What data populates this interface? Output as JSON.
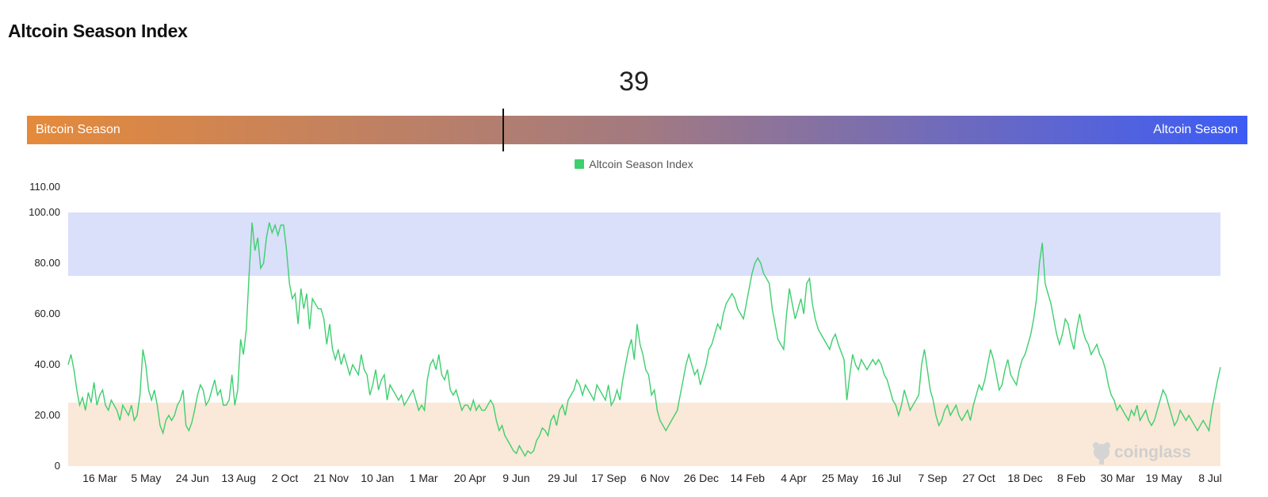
{
  "header": {
    "title": "Altcoin Season Index"
  },
  "gauge": {
    "value": "39",
    "left_label": "Bitcoin Season",
    "right_label": "Altcoin Season",
    "marker_fraction": 0.39,
    "gradient_colors": [
      "#e58a3b",
      "#a37a80",
      "#3d5cf5"
    ]
  },
  "watermark": {
    "text": "coinglass",
    "icon": "coinglass-logo-icon"
  },
  "chart_data": {
    "type": "line",
    "title": "",
    "xlabel": "",
    "ylabel": "",
    "ylim": [
      0,
      110
    ],
    "yticks": [
      "0",
      "20.00",
      "40.00",
      "60.00",
      "80.00",
      "100.00",
      "110.00"
    ],
    "ytick_values": [
      0,
      20,
      40,
      60,
      80,
      100,
      110
    ],
    "xticks": [
      "16 Mar",
      "5 May",
      "24 Jun",
      "13 Aug",
      "2 Oct",
      "21 Nov",
      "10 Jan",
      "1 Mar",
      "20 Apr",
      "9 Jun",
      "29 Jul",
      "17 Sep",
      "6 Nov",
      "26 Dec",
      "14 Feb",
      "4 Apr",
      "25 May",
      "16 Jul",
      "7 Sep",
      "27 Oct",
      "18 Dec",
      "8 Feb",
      "30 Mar",
      "19 May",
      "8 Jul"
    ],
    "legend": {
      "position": "top-center",
      "entries": [
        "Altcoin Season Index"
      ]
    },
    "grid": false,
    "bands": [
      {
        "from": 75,
        "to": 100,
        "color": "#dadffa",
        "meaning": "altcoin season zone"
      },
      {
        "from": 0,
        "to": 25,
        "color": "#fae8d8",
        "meaning": "bitcoin season zone"
      }
    ],
    "series": [
      {
        "name": "Altcoin Season Index",
        "color": "#3ecf6e",
        "values": [
          40,
          44,
          38,
          30,
          24,
          27,
          22,
          29,
          25,
          33,
          24,
          28,
          30,
          24,
          22,
          26,
          24,
          22,
          18,
          24,
          22,
          20,
          24,
          18,
          20,
          28,
          46,
          40,
          30,
          26,
          30,
          24,
          16,
          13,
          18,
          20,
          18,
          20,
          24,
          26,
          30,
          16,
          14,
          17,
          22,
          28,
          32,
          30,
          24,
          26,
          30,
          34,
          28,
          30,
          24,
          24,
          26,
          36,
          24,
          30,
          50,
          44,
          54,
          76,
          96,
          85,
          90,
          78,
          80,
          90,
          96,
          92,
          95,
          91,
          95,
          95,
          85,
          72,
          66,
          68,
          56,
          70,
          62,
          68,
          54,
          66,
          64,
          62,
          62,
          58,
          48,
          56,
          46,
          42,
          46,
          40,
          44,
          40,
          36,
          40,
          38,
          36,
          44,
          38,
          36,
          28,
          32,
          38,
          30,
          34,
          36,
          26,
          32,
          30,
          28,
          26,
          28,
          24,
          26,
          28,
          30,
          26,
          22,
          24,
          22,
          34,
          40,
          42,
          38,
          44,
          36,
          34,
          38,
          30,
          28,
          30,
          26,
          22,
          24,
          24,
          22,
          26,
          22,
          24,
          22,
          22,
          24,
          26,
          24,
          18,
          14,
          16,
          12,
          10,
          8,
          6,
          5,
          8,
          6,
          4,
          6,
          5,
          6,
          10,
          12,
          15,
          14,
          12,
          18,
          20,
          16,
          22,
          24,
          20,
          26,
          28,
          30,
          34,
          32,
          28,
          32,
          30,
          28,
          26,
          32,
          30,
          28,
          26,
          32,
          24,
          26,
          30,
          26,
          34,
          40,
          46,
          50,
          42,
          56,
          48,
          44,
          38,
          36,
          28,
          30,
          22,
          18,
          16,
          14,
          16,
          18,
          20,
          22,
          28,
          34,
          40,
          44,
          40,
          36,
          38,
          32,
          36,
          40,
          46,
          48,
          52,
          56,
          54,
          60,
          64,
          66,
          68,
          66,
          62,
          60,
          58,
          64,
          70,
          76,
          80,
          82,
          80,
          76,
          74,
          72,
          62,
          56,
          50,
          48,
          46,
          60,
          70,
          64,
          58,
          62,
          66,
          60,
          72,
          74,
          64,
          58,
          54,
          52,
          50,
          48,
          46,
          50,
          52,
          48,
          45,
          42,
          26,
          36,
          44,
          40,
          38,
          42,
          40,
          38,
          40,
          42,
          40,
          42,
          40,
          36,
          34,
          30,
          26,
          24,
          20,
          24,
          30,
          26,
          22,
          24,
          26,
          28,
          40,
          46,
          38,
          30,
          26,
          20,
          16,
          18,
          22,
          24,
          20,
          22,
          24,
          20,
          18,
          20,
          22,
          18,
          24,
          28,
          32,
          30,
          34,
          40,
          46,
          42,
          36,
          30,
          32,
          38,
          42,
          36,
          34,
          32,
          38,
          42,
          44,
          48,
          52,
          58,
          66,
          80,
          88,
          72,
          68,
          64,
          58,
          52,
          48,
          52,
          58,
          56,
          50,
          46,
          54,
          60,
          54,
          50,
          48,
          44,
          46,
          48,
          44,
          42,
          38,
          32,
          28,
          26,
          22,
          24,
          22,
          20,
          18,
          22,
          20,
          24,
          18,
          20,
          22,
          18,
          16,
          18,
          22,
          26,
          30,
          28,
          24,
          20,
          16,
          18,
          22,
          20,
          18,
          20,
          18,
          16,
          14,
          16,
          18,
          16,
          14,
          22,
          28,
          34,
          39
        ]
      }
    ]
  }
}
